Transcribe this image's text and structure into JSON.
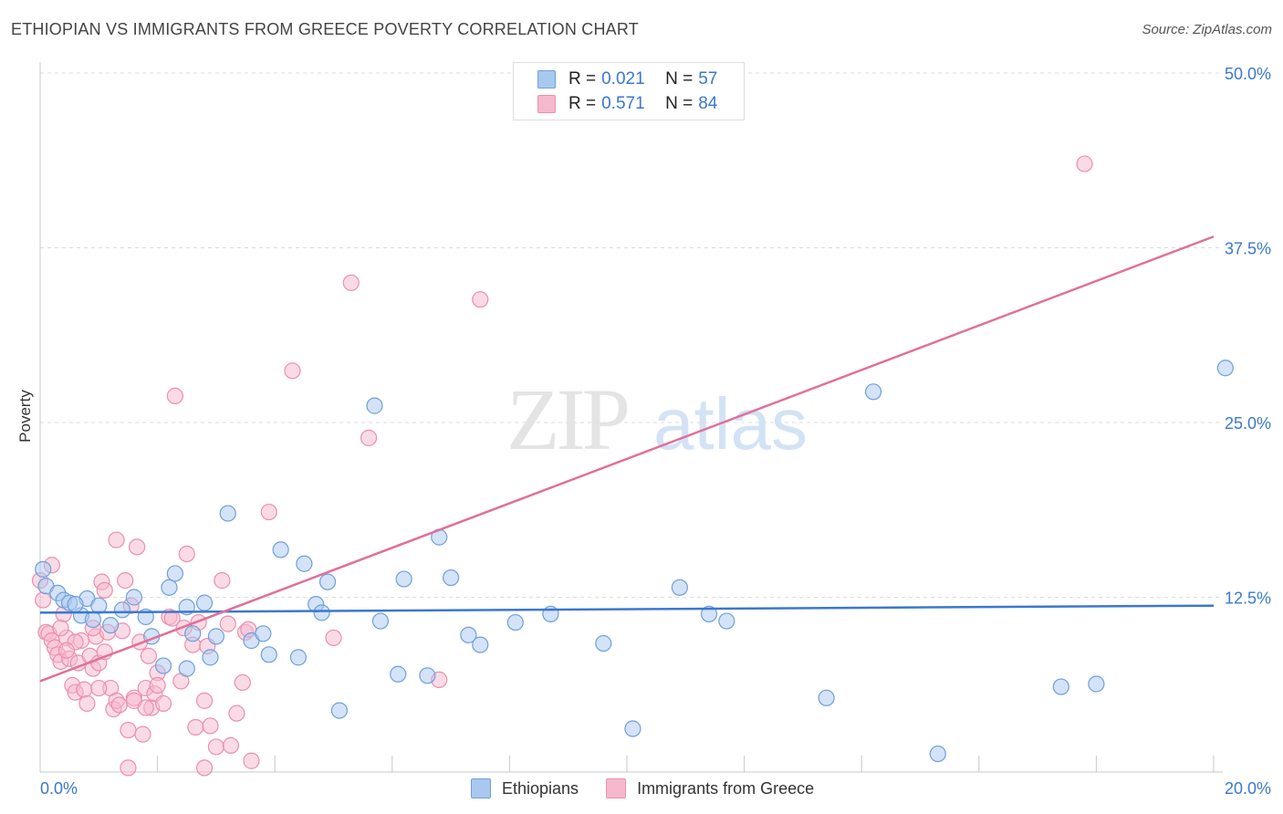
{
  "header": {
    "title": "ETHIOPIAN VS IMMIGRANTS FROM GREECE POVERTY CORRELATION CHART",
    "source": "Source: ZipAtlas.com"
  },
  "legend": {
    "rows": [
      {
        "r_label": "R =",
        "r_value": "0.021",
        "n_label": "N =",
        "n_value": "57"
      },
      {
        "r_label": "R =",
        "r_value": "0.571",
        "n_label": "N =",
        "n_value": "84"
      }
    ]
  },
  "watermark": {
    "zip": "ZIP",
    "atlas": "atlas"
  },
  "colors": {
    "blue_fill": "#a9c8ef",
    "blue_stroke": "#6f9fdc",
    "blue_line": "#3a78d0",
    "pink_fill": "#f6b8cc",
    "pink_stroke": "#ec8fae",
    "pink_line": "#e0709a",
    "tick_label": "#3a78d0",
    "grid": "#dcdcdc"
  },
  "chart_data": {
    "type": "scatter",
    "title": "ETHIOPIAN VS IMMIGRANTS FROM GREECE POVERTY CORRELATION CHART",
    "xlabel": "",
    "ylabel": "Poverty",
    "xlim": [
      0,
      20
    ],
    "ylim": [
      0,
      50
    ],
    "x_tick_labels": [
      "0.0%",
      "20.0%"
    ],
    "y_ticks": [
      {
        "value": 12.5,
        "label": "12.5%"
      },
      {
        "value": 25.0,
        "label": "25.0%"
      },
      {
        "value": 37.5,
        "label": "37.5%"
      },
      {
        "value": 50.0,
        "label": "50.0%"
      }
    ],
    "grid": true,
    "series": [
      {
        "name": "Ethiopians",
        "r": 0.021,
        "n": 57,
        "trend": [
          [
            0,
            11.4
          ],
          [
            20,
            11.9
          ]
        ],
        "points": [
          [
            0.1,
            13.3
          ],
          [
            0.3,
            12.8
          ],
          [
            0.4,
            12.3
          ],
          [
            0.5,
            12.1
          ],
          [
            0.7,
            11.2
          ],
          [
            0.8,
            12.4
          ],
          [
            0.9,
            10.9
          ],
          [
            1.0,
            11.9
          ],
          [
            1.2,
            10.5
          ],
          [
            1.4,
            11.6
          ],
          [
            1.6,
            12.5
          ],
          [
            1.8,
            11.1
          ],
          [
            1.9,
            9.7
          ],
          [
            2.1,
            7.6
          ],
          [
            2.2,
            13.2
          ],
          [
            2.3,
            14.2
          ],
          [
            2.5,
            7.4
          ],
          [
            2.5,
            11.8
          ],
          [
            2.6,
            9.9
          ],
          [
            2.8,
            12.1
          ],
          [
            2.9,
            8.2
          ],
          [
            3.0,
            9.7
          ],
          [
            3.2,
            18.5
          ],
          [
            4.1,
            15.9
          ],
          [
            3.6,
            9.4
          ],
          [
            3.8,
            9.9
          ],
          [
            3.9,
            8.4
          ],
          [
            4.4,
            8.2
          ],
          [
            4.5,
            14.9
          ],
          [
            4.7,
            12.0
          ],
          [
            4.8,
            11.4
          ],
          [
            4.9,
            13.6
          ],
          [
            5.1,
            4.4
          ],
          [
            5.7,
            26.2
          ],
          [
            5.8,
            10.8
          ],
          [
            6.2,
            13.8
          ],
          [
            6.1,
            7.0
          ],
          [
            6.6,
            6.9
          ],
          [
            6.8,
            16.8
          ],
          [
            7.0,
            13.9
          ],
          [
            7.3,
            9.8
          ],
          [
            7.5,
            9.1
          ],
          [
            8.1,
            10.7
          ],
          [
            8.7,
            11.3
          ],
          [
            9.6,
            9.2
          ],
          [
            10.1,
            3.1
          ],
          [
            10.9,
            13.2
          ],
          [
            11.4,
            11.3
          ],
          [
            11.7,
            10.8
          ],
          [
            13.4,
            5.3
          ],
          [
            14.2,
            27.2
          ],
          [
            15.3,
            1.3
          ],
          [
            17.4,
            6.1
          ],
          [
            18.0,
            6.3
          ],
          [
            20.2,
            28.9
          ],
          [
            0.05,
            14.5
          ],
          [
            0.6,
            12.0
          ]
        ]
      },
      {
        "name": "Immigrants from Greece",
        "r": 0.571,
        "n": 84,
        "trend": [
          [
            0,
            6.5
          ],
          [
            20,
            38.3
          ]
        ],
        "points": [
          [
            0.0,
            13.7
          ],
          [
            0.05,
            12.3
          ],
          [
            0.1,
            10.0
          ],
          [
            0.15,
            9.9
          ],
          [
            0.2,
            9.4
          ],
          [
            0.25,
            8.9
          ],
          [
            0.3,
            8.4
          ],
          [
            0.35,
            7.9
          ],
          [
            0.4,
            11.3
          ],
          [
            0.45,
            9.6
          ],
          [
            0.5,
            8.1
          ],
          [
            0.55,
            6.2
          ],
          [
            0.6,
            5.7
          ],
          [
            0.65,
            7.8
          ],
          [
            0.7,
            9.4
          ],
          [
            0.75,
            5.9
          ],
          [
            0.8,
            4.9
          ],
          [
            0.85,
            8.3
          ],
          [
            0.9,
            7.4
          ],
          [
            0.95,
            9.7
          ],
          [
            1.0,
            7.8
          ],
          [
            1.05,
            13.6
          ],
          [
            1.1,
            8.6
          ],
          [
            1.15,
            10.0
          ],
          [
            1.2,
            6.0
          ],
          [
            1.25,
            4.5
          ],
          [
            1.3,
            5.1
          ],
          [
            1.35,
            4.8
          ],
          [
            1.4,
            10.1
          ],
          [
            1.45,
            13.7
          ],
          [
            1.5,
            3.0
          ],
          [
            1.55,
            11.9
          ],
          [
            1.6,
            5.3
          ],
          [
            1.65,
            16.1
          ],
          [
            1.7,
            9.3
          ],
          [
            1.75,
            2.7
          ],
          [
            1.8,
            6.0
          ],
          [
            1.85,
            8.3
          ],
          [
            1.9,
            4.6
          ],
          [
            1.95,
            5.6
          ],
          [
            2.0,
            7.1
          ],
          [
            2.1,
            4.9
          ],
          [
            2.2,
            11.1
          ],
          [
            2.3,
            26.9
          ],
          [
            2.4,
            6.5
          ],
          [
            2.5,
            15.6
          ],
          [
            2.6,
            9.1
          ],
          [
            2.7,
            10.7
          ],
          [
            2.8,
            5.1
          ],
          [
            2.9,
            3.3
          ],
          [
            3.0,
            1.8
          ],
          [
            3.1,
            13.7
          ],
          [
            3.2,
            10.6
          ],
          [
            3.35,
            4.2
          ],
          [
            3.5,
            10.0
          ],
          [
            3.6,
            0.8
          ],
          [
            3.9,
            18.6
          ],
          [
            4.3,
            28.7
          ],
          [
            5.0,
            9.6
          ],
          [
            5.3,
            35.0
          ],
          [
            5.6,
            23.9
          ],
          [
            6.8,
            6.6
          ],
          [
            7.5,
            33.8
          ],
          [
            0.2,
            14.8
          ],
          [
            0.35,
            10.3
          ],
          [
            0.6,
            9.3
          ],
          [
            0.9,
            10.3
          ],
          [
            1.1,
            13.0
          ],
          [
            1.3,
            16.6
          ],
          [
            1.6,
            5.1
          ],
          [
            1.8,
            4.6
          ],
          [
            2.0,
            6.2
          ],
          [
            2.25,
            11.0
          ],
          [
            2.45,
            10.3
          ],
          [
            2.65,
            3.2
          ],
          [
            2.85,
            9.0
          ],
          [
            3.25,
            1.9
          ],
          [
            3.45,
            6.4
          ],
          [
            3.55,
            10.2
          ],
          [
            1.5,
            0.3
          ],
          [
            2.8,
            0.3
          ],
          [
            0.45,
            8.7
          ],
          [
            1.0,
            6.0
          ],
          [
            17.8,
            43.5
          ]
        ]
      }
    ]
  },
  "bottom_legend": {
    "items": [
      {
        "label": "Ethiopians"
      },
      {
        "label": "Immigrants from Greece"
      }
    ]
  }
}
